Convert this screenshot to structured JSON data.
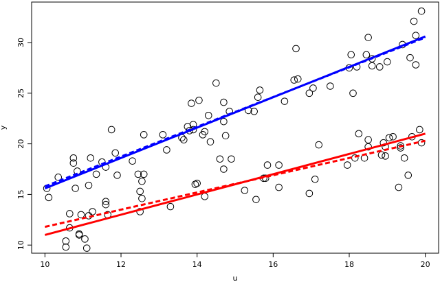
{
  "chart_data": {
    "type": "scatter",
    "title": "",
    "xlabel": "u",
    "ylabel": "y",
    "xlim": [
      9.65,
      20.35
    ],
    "ylim": [
      9.2,
      34.0
    ],
    "x_ticks": [
      10,
      12,
      14,
      16,
      18,
      20
    ],
    "y_ticks": [
      10,
      15,
      20,
      25,
      30
    ],
    "grid": false,
    "legend": "none",
    "marker": "open-circle",
    "series": [
      {
        "color": "#000000",
        "points": [
          [
            10.05,
            15.6
          ],
          [
            10.1,
            14.7
          ],
          [
            10.35,
            16.7
          ],
          [
            10.55,
            10.4
          ],
          [
            10.55,
            9.8
          ],
          [
            10.65,
            13.1
          ],
          [
            10.65,
            11.7
          ],
          [
            10.75,
            18.6
          ],
          [
            10.75,
            18.1
          ],
          [
            10.8,
            15.6
          ],
          [
            10.85,
            17.3
          ],
          [
            10.9,
            11.1
          ],
          [
            10.9,
            11.0
          ],
          [
            10.95,
            13.0
          ],
          [
            11.05,
            10.6
          ],
          [
            11.1,
            9.7
          ],
          [
            11.15,
            12.9
          ],
          [
            11.15,
            15.9
          ],
          [
            11.2,
            18.6
          ],
          [
            11.25,
            13.3
          ],
          [
            11.35,
            17.0
          ],
          [
            11.5,
            18.2
          ],
          [
            11.6,
            14.0
          ],
          [
            11.6,
            14.3
          ],
          [
            11.6,
            17.7
          ],
          [
            11.65,
            13.0
          ],
          [
            11.75,
            21.4
          ],
          [
            11.85,
            19.1
          ],
          [
            11.9,
            16.9
          ],
          [
            12.3,
            18.3
          ],
          [
            12.45,
            17.0
          ],
          [
            12.5,
            13.3
          ],
          [
            12.5,
            15.3
          ],
          [
            12.55,
            14.6
          ],
          [
            12.55,
            16.3
          ],
          [
            12.6,
            17.0
          ],
          [
            12.6,
            20.9
          ],
          [
            13.1,
            20.9
          ],
          [
            13.2,
            19.4
          ],
          [
            13.3,
            13.8
          ],
          [
            13.6,
            20.6
          ],
          [
            13.65,
            20.4
          ],
          [
            13.75,
            21.7
          ],
          [
            13.8,
            21.3
          ],
          [
            13.85,
            24.0
          ],
          [
            13.9,
            21.4
          ],
          [
            13.9,
            21.9
          ],
          [
            13.95,
            16.0
          ],
          [
            14.0,
            16.1
          ],
          [
            14.05,
            24.3
          ],
          [
            14.15,
            20.9
          ],
          [
            14.2,
            14.8
          ],
          [
            14.2,
            21.2
          ],
          [
            14.3,
            22.8
          ],
          [
            14.35,
            20.2
          ],
          [
            14.5,
            26.0
          ],
          [
            14.6,
            18.5
          ],
          [
            14.7,
            17.5
          ],
          [
            14.7,
            22.2
          ],
          [
            14.7,
            24.1
          ],
          [
            14.75,
            20.8
          ],
          [
            14.85,
            23.2
          ],
          [
            14.9,
            18.5
          ],
          [
            15.25,
            15.4
          ],
          [
            15.35,
            23.3
          ],
          [
            15.5,
            23.2
          ],
          [
            15.55,
            14.5
          ],
          [
            15.6,
            24.6
          ],
          [
            15.65,
            25.3
          ],
          [
            15.75,
            16.6
          ],
          [
            15.8,
            16.6
          ],
          [
            15.85,
            17.9
          ],
          [
            16.15,
            15.7
          ],
          [
            16.15,
            17.9
          ],
          [
            16.3,
            24.2
          ],
          [
            16.55,
            26.3
          ],
          [
            16.6,
            29.4
          ],
          [
            16.65,
            26.4
          ],
          [
            16.95,
            25.0
          ],
          [
            16.95,
            15.1
          ],
          [
            17.05,
            25.5
          ],
          [
            17.1,
            16.5
          ],
          [
            17.2,
            19.9
          ],
          [
            17.5,
            25.7
          ],
          [
            17.95,
            17.9
          ],
          [
            18.0,
            27.5
          ],
          [
            18.05,
            28.8
          ],
          [
            18.1,
            25.0
          ],
          [
            18.15,
            18.6
          ],
          [
            18.2,
            27.6
          ],
          [
            18.25,
            21.0
          ],
          [
            18.4,
            18.6
          ],
          [
            18.45,
            28.8
          ],
          [
            18.5,
            30.5
          ],
          [
            18.5,
            20.4
          ],
          [
            18.5,
            19.7
          ],
          [
            18.6,
            28.4
          ],
          [
            18.6,
            27.7
          ],
          [
            18.8,
            27.6
          ],
          [
            18.85,
            18.9
          ],
          [
            18.9,
            20.1
          ],
          [
            18.95,
            18.8
          ],
          [
            18.95,
            19.7
          ],
          [
            19.0,
            28.1
          ],
          [
            19.05,
            20.6
          ],
          [
            19.15,
            20.7
          ],
          [
            19.3,
            15.7
          ],
          [
            19.35,
            19.6
          ],
          [
            19.35,
            19.8
          ],
          [
            19.4,
            29.8
          ],
          [
            19.45,
            18.6
          ],
          [
            19.55,
            16.9
          ],
          [
            19.6,
            28.5
          ],
          [
            19.65,
            20.7
          ],
          [
            19.7,
            32.1
          ],
          [
            19.75,
            27.8
          ],
          [
            19.75,
            30.7
          ],
          [
            19.85,
            21.4
          ],
          [
            19.9,
            20.1
          ],
          [
            19.9,
            33.1
          ]
        ]
      }
    ],
    "lines": [
      {
        "color": "#0000ff",
        "dash": "solid",
        "x": [
          10,
          20
        ],
        "y": [
          15.6,
          30.6
        ]
      },
      {
        "color": "#0000ff",
        "dash": "dashed",
        "x": [
          10,
          20
        ],
        "y": [
          15.8,
          30.5
        ]
      },
      {
        "color": "#ff0000",
        "dash": "solid",
        "x": [
          10,
          20
        ],
        "y": [
          11.0,
          21.0
        ]
      },
      {
        "color": "#ff0000",
        "dash": "dashed",
        "x": [
          10,
          20
        ],
        "y": [
          11.8,
          20.3
        ]
      }
    ]
  }
}
